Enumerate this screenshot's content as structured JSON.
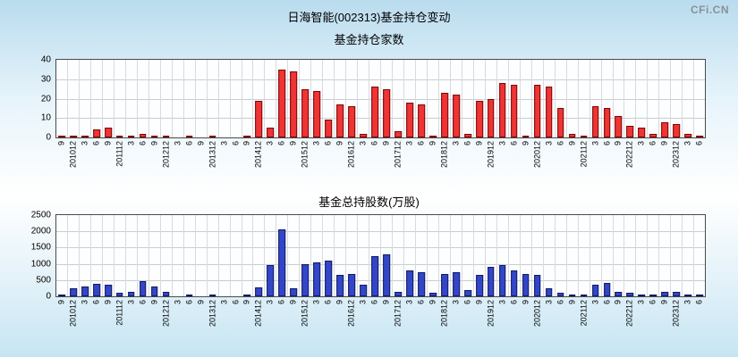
{
  "header": {
    "title": "日海智能(002313)基金持仓变动",
    "watermark": "CFi.CN"
  },
  "chart_data": [
    {
      "type": "bar",
      "title": "基金持仓家数",
      "xlabel": "",
      "ylabel": "",
      "ylim": [
        0,
        40
      ],
      "yticks": [
        0,
        10,
        20,
        30,
        40
      ],
      "grid": true,
      "legend_position": "none",
      "bar_color": "#ee3434",
      "bar_border": "#7a0606",
      "categories": [
        "9",
        "201012",
        "3",
        "6",
        "9",
        "201112",
        "3",
        "6",
        "9",
        "201212",
        "3",
        "6",
        "9",
        "201312",
        "3",
        "6",
        "9",
        "201412",
        "3",
        "6",
        "9",
        "201512",
        "3",
        "6",
        "9",
        "201612",
        "3",
        "6",
        "9",
        "201712",
        "3",
        "6",
        "9",
        "201812",
        "3",
        "6",
        "9",
        "201912",
        "3",
        "6",
        "9",
        "202012",
        "3",
        "6",
        "9",
        "202112",
        "3",
        "6",
        "9",
        "202212",
        "3",
        "6",
        "9",
        "202312",
        "3",
        "6"
      ],
      "values": [
        1,
        1,
        1,
        4,
        5,
        1,
        1,
        2,
        1,
        1,
        0,
        1,
        0,
        1,
        0,
        0,
        1,
        19,
        5,
        35,
        34,
        25,
        24,
        9,
        17,
        16,
        2,
        26,
        25,
        3,
        18,
        17,
        1,
        23,
        22,
        2,
        19,
        20,
        28,
        27,
        1,
        27,
        26,
        15,
        2,
        1,
        16,
        15,
        11,
        6,
        5,
        2,
        8,
        7,
        2,
        1
      ]
    },
    {
      "type": "bar",
      "title": "基金总持股数(万股)",
      "xlabel": "",
      "ylabel": "",
      "ylim": [
        0,
        2500
      ],
      "yticks": [
        0,
        500,
        1000,
        1500,
        2000,
        2500
      ],
      "grid": true,
      "legend_position": "none",
      "bar_color": "#3446c8",
      "bar_border": "#101a60",
      "categories": [
        "9",
        "201012",
        "3",
        "6",
        "9",
        "201112",
        "3",
        "6",
        "9",
        "201212",
        "3",
        "6",
        "9",
        "201312",
        "3",
        "6",
        "9",
        "201412",
        "3",
        "6",
        "9",
        "201512",
        "3",
        "6",
        "9",
        "201612",
        "3",
        "6",
        "9",
        "201712",
        "3",
        "6",
        "9",
        "201812",
        "3",
        "6",
        "9",
        "201912",
        "3",
        "6",
        "9",
        "202012",
        "3",
        "6",
        "9",
        "202112",
        "3",
        "6",
        "9",
        "202212",
        "3",
        "6",
        "9",
        "202312",
        "3",
        "6"
      ],
      "values": [
        30,
        250,
        300,
        380,
        350,
        100,
        150,
        480,
        300,
        150,
        0,
        50,
        0,
        30,
        0,
        0,
        50,
        270,
        950,
        2050,
        250,
        1000,
        1050,
        1100,
        650,
        700,
        350,
        1250,
        1300,
        150,
        800,
        750,
        100,
        700,
        750,
        200,
        650,
        900,
        950,
        800,
        700,
        650,
        250,
        100,
        50,
        30,
        350,
        400,
        150,
        100,
        50,
        30,
        150,
        150,
        50,
        30
      ]
    }
  ]
}
